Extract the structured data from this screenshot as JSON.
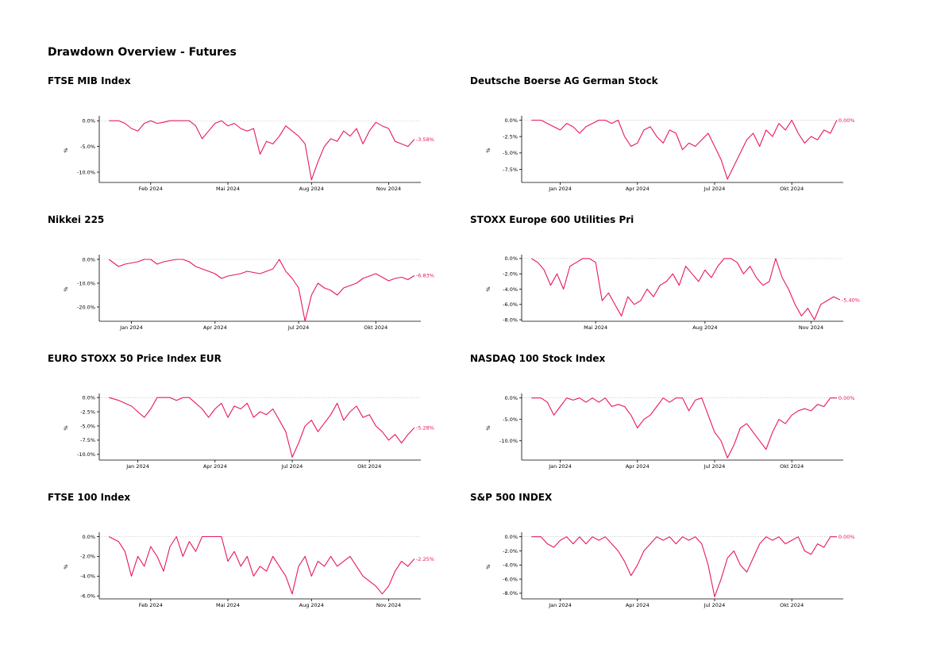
{
  "page_title": "Drawdown Overview - Futures",
  "colors": {
    "line": "#e8185a",
    "zero_line": "#bbbbbb",
    "axis": "#000000"
  },
  "chart_data": [
    {
      "type": "line",
      "title": "FTSE MIB Index",
      "ylabel": "%",
      "yticks": [
        0,
        -5,
        -10
      ],
      "ytick_labels": [
        "0.0%",
        "-5.0%",
        "-10.0%"
      ],
      "ylim": [
        -12,
        0.5
      ],
      "xlim": [
        0,
        100
      ],
      "xticks": [
        16,
        40,
        66,
        90
      ],
      "xtick_labels": [
        "Feb 2024",
        "Mai 2024",
        "Aug 2024",
        "Nov 2024"
      ],
      "end_label": "-3.58%",
      "x": [
        3,
        6,
        8,
        10,
        12,
        14,
        16,
        18,
        20,
        22,
        24,
        26,
        28,
        30,
        32,
        34,
        36,
        38,
        40,
        42,
        44,
        46,
        48,
        50,
        52,
        54,
        56,
        58,
        60,
        62,
        64,
        66,
        68,
        70,
        72,
        74,
        76,
        78,
        80,
        82,
        84,
        86,
        88,
        90,
        92,
        94,
        96,
        98
      ],
      "y": [
        0,
        0,
        -0.5,
        -1.5,
        -2,
        -0.5,
        0,
        -0.5,
        -0.3,
        0,
        0,
        0,
        0,
        -1,
        -3.5,
        -2,
        -0.5,
        0,
        -1,
        -0.5,
        -1.5,
        -2,
        -1.5,
        -6.5,
        -4,
        -4.5,
        -3,
        -1,
        -2,
        -3,
        -4.5,
        -11.5,
        -8,
        -5,
        -3.5,
        -4,
        -2,
        -3,
        -1.5,
        -4.5,
        -2,
        -0.3,
        -1,
        -1.5,
        -4,
        -4.5,
        -5,
        -3.6
      ]
    },
    {
      "type": "line",
      "title": "Deutsche Boerse AG German Stock",
      "ylabel": "%",
      "yticks": [
        0,
        -2.5,
        -5,
        -7.5
      ],
      "ytick_labels": [
        "0.0%",
        "-2.5%",
        "-5.0%",
        "-7.5%"
      ],
      "ylim": [
        -9.5,
        0.3
      ],
      "xlim": [
        0,
        100
      ],
      "xticks": [
        12,
        36,
        60,
        84
      ],
      "xtick_labels": [
        "Jan 2024",
        "Apr 2024",
        "Jul 2024",
        "Okt 2024"
      ],
      "end_label": "0.00%",
      "x": [
        3,
        6,
        8,
        10,
        12,
        14,
        16,
        18,
        20,
        22,
        24,
        26,
        28,
        30,
        32,
        34,
        36,
        38,
        40,
        42,
        44,
        46,
        48,
        50,
        52,
        54,
        56,
        58,
        60,
        62,
        64,
        66,
        68,
        70,
        72,
        74,
        76,
        78,
        80,
        82,
        84,
        86,
        88,
        90,
        92,
        94,
        96,
        98
      ],
      "y": [
        0,
        0,
        -0.5,
        -1,
        -1.5,
        -0.5,
        -1,
        -2,
        -1,
        -0.5,
        0,
        0,
        -0.5,
        0,
        -2.5,
        -4,
        -3.5,
        -1.5,
        -1,
        -2.5,
        -3.5,
        -1.5,
        -2,
        -4.5,
        -3.5,
        -4,
        -3,
        -2,
        -4,
        -6,
        -9,
        -7,
        -5,
        -3,
        -2,
        -4,
        -1.5,
        -2.5,
        -0.5,
        -1.5,
        0,
        -2,
        -3.5,
        -2.5,
        -3,
        -1.5,
        -2,
        0
      ]
    },
    {
      "type": "line",
      "title": "Nikkei 225",
      "ylabel": "%",
      "yticks": [
        0,
        -10,
        -20
      ],
      "ytick_labels": [
        "0.0%",
        "-10.0%",
        "-20.0%"
      ],
      "ylim": [
        -26,
        1
      ],
      "xlim": [
        0,
        100
      ],
      "xticks": [
        10,
        36,
        62,
        86
      ],
      "xtick_labels": [
        "Jan 2024",
        "Apr 2024",
        "Jul 2024",
        "Okt 2024"
      ],
      "end_label": "-6.83%",
      "x": [
        3,
        6,
        8,
        10,
        12,
        14,
        16,
        18,
        20,
        22,
        24,
        26,
        28,
        30,
        32,
        34,
        36,
        38,
        40,
        42,
        44,
        46,
        48,
        50,
        52,
        54,
        56,
        58,
        60,
        62,
        64,
        66,
        68,
        70,
        72,
        74,
        76,
        78,
        80,
        82,
        84,
        86,
        88,
        90,
        92,
        94,
        96,
        98
      ],
      "y": [
        0,
        -3,
        -2,
        -1.5,
        -1,
        0,
        0,
        -2,
        -1,
        -0.5,
        0,
        0,
        -1,
        -3,
        -4,
        -5,
        -6,
        -8,
        -7,
        -6.5,
        -6,
        -5,
        -5.5,
        -6,
        -5,
        -4,
        0,
        -5,
        -8,
        -12,
        -26,
        -15,
        -10,
        -12,
        -13,
        -15,
        -12,
        -11,
        -10,
        -8,
        -7,
        -6,
        -7.5,
        -9,
        -8,
        -7.5,
        -8.5,
        -6.8
      ]
    },
    {
      "type": "line",
      "title": "STOXX Europe 600 Utilities Pri",
      "ylabel": "%",
      "yticks": [
        0,
        -2,
        -4,
        -6,
        -8
      ],
      "ytick_labels": [
        "0.0%",
        "-2.0%",
        "-4.0%",
        "-6.0%",
        "-8.0%"
      ],
      "ylim": [
        -8.2,
        0.2
      ],
      "xlim": [
        0,
        100
      ],
      "xticks": [
        23,
        57,
        90
      ],
      "xtick_labels": [
        "Mai 2024",
        "Aug 2024",
        "Nov 2024"
      ],
      "end_label": "-5.40%",
      "x": [
        3,
        5,
        7,
        9,
        11,
        13,
        15,
        17,
        19,
        21,
        23,
        25,
        27,
        29,
        31,
        33,
        35,
        37,
        39,
        41,
        43,
        45,
        47,
        49,
        51,
        53,
        55,
        57,
        59,
        61,
        63,
        65,
        67,
        69,
        71,
        73,
        75,
        77,
        79,
        81,
        83,
        85,
        87,
        89,
        91,
        93,
        95,
        97,
        99
      ],
      "y": [
        0,
        -0.5,
        -1.5,
        -3.5,
        -2,
        -4,
        -1,
        -0.5,
        0,
        0,
        -0.5,
        -5.5,
        -4.5,
        -6,
        -7.5,
        -5,
        -6,
        -5.5,
        -4,
        -5,
        -3.5,
        -3,
        -2,
        -3.5,
        -1,
        -2,
        -3,
        -1.5,
        -2.5,
        -1,
        0,
        0,
        -0.5,
        -2,
        -1,
        -2.5,
        -3.5,
        -3,
        0,
        -2.5,
        -4,
        -6,
        -7.5,
        -6.5,
        -8,
        -6,
        -5.5,
        -5,
        -5.4
      ]
    },
    {
      "type": "line",
      "title": "EURO STOXX 50 Price Index EUR",
      "ylabel": "%",
      "yticks": [
        0,
        -2.5,
        -5,
        -7.5,
        -10
      ],
      "ytick_labels": [
        "0.0%",
        "-2.5%",
        "-5.0%",
        "-7.5%",
        "-10.0%"
      ],
      "ylim": [
        -11,
        0.3
      ],
      "xlim": [
        0,
        100
      ],
      "xticks": [
        12,
        36,
        60,
        84
      ],
      "xtick_labels": [
        "Jan 2024",
        "Apr 2024",
        "Jul 2024",
        "Okt 2024"
      ],
      "end_label": "-5.28%",
      "x": [
        3,
        6,
        8,
        10,
        12,
        14,
        16,
        18,
        20,
        22,
        24,
        26,
        28,
        30,
        32,
        34,
        36,
        38,
        40,
        42,
        44,
        46,
        48,
        50,
        52,
        54,
        56,
        58,
        60,
        62,
        64,
        66,
        68,
        70,
        72,
        74,
        76,
        78,
        80,
        82,
        84,
        86,
        88,
        90,
        92,
        94,
        96,
        98
      ],
      "y": [
        0,
        -0.5,
        -1,
        -1.5,
        -2.5,
        -3.5,
        -2,
        0,
        0,
        0,
        -0.5,
        0,
        0,
        -1,
        -2,
        -3.5,
        -2,
        -1,
        -3.5,
        -1.5,
        -2,
        -1,
        -3.5,
        -2.5,
        -3,
        -2,
        -4,
        -6,
        -10.5,
        -8,
        -5,
        -4,
        -6,
        -4.5,
        -3,
        -1,
        -4,
        -2.5,
        -1.5,
        -3.5,
        -3,
        -5,
        -6,
        -7.5,
        -6.5,
        -8,
        -6.5,
        -5.3
      ]
    },
    {
      "type": "line",
      "title": "NASDAQ 100 Stock Index",
      "ylabel": "%",
      "yticks": [
        0,
        -5,
        -10
      ],
      "ytick_labels": [
        "0.0%",
        "-5.0%",
        "-10.0%"
      ],
      "ylim": [
        -14.5,
        0.5
      ],
      "xlim": [
        0,
        100
      ],
      "xticks": [
        12,
        36,
        60,
        84
      ],
      "xtick_labels": [
        "Jan 2024",
        "Apr 2024",
        "Jul 2024",
        "Okt 2024"
      ],
      "end_label": "0.00%",
      "x": [
        3,
        6,
        8,
        10,
        12,
        14,
        16,
        18,
        20,
        22,
        24,
        26,
        28,
        30,
        32,
        34,
        36,
        38,
        40,
        42,
        44,
        46,
        48,
        50,
        52,
        54,
        56,
        58,
        60,
        62,
        64,
        66,
        68,
        70,
        72,
        74,
        76,
        78,
        80,
        82,
        84,
        86,
        88,
        90,
        92,
        94,
        96,
        98
      ],
      "y": [
        0,
        0,
        -1,
        -4,
        -2,
        0,
        -0.5,
        0,
        -1,
        0,
        -1,
        0,
        -2,
        -1.5,
        -2,
        -4,
        -7,
        -5,
        -4,
        -2,
        0,
        -1,
        0,
        0,
        -3,
        -0.5,
        0,
        -4,
        -8,
        -10,
        -14,
        -11,
        -7,
        -6,
        -8,
        -10,
        -12,
        -8,
        -5,
        -6,
        -4,
        -3,
        -2.5,
        -3,
        -1.5,
        -2,
        0,
        0
      ]
    },
    {
      "type": "line",
      "title": "FTSE 100 Index",
      "ylabel": "%",
      "yticks": [
        0,
        -2,
        -4,
        -6
      ],
      "ytick_labels": [
        "0.0%",
        "-2.0%",
        "-4.0%",
        "-6.0%"
      ],
      "ylim": [
        -6.3,
        0.2
      ],
      "xlim": [
        0,
        100
      ],
      "xticks": [
        16,
        40,
        66,
        90
      ],
      "xtick_labels": [
        "Feb 2024",
        "Mai 2024",
        "Aug 2024",
        "Nov 2024"
      ],
      "end_label": "-2.25%",
      "x": [
        3,
        6,
        8,
        10,
        12,
        14,
        16,
        18,
        20,
        22,
        24,
        26,
        28,
        30,
        32,
        34,
        36,
        38,
        40,
        42,
        44,
        46,
        48,
        50,
        52,
        54,
        56,
        58,
        60,
        62,
        64,
        66,
        68,
        70,
        72,
        74,
        76,
        78,
        80,
        82,
        84,
        86,
        88,
        90,
        92,
        94,
        96,
        98
      ],
      "y": [
        0,
        -0.5,
        -1.5,
        -4,
        -2,
        -3,
        -1,
        -2,
        -3.5,
        -1,
        0,
        -2,
        -0.5,
        -1.5,
        0,
        0,
        0,
        0,
        -2.5,
        -1.5,
        -3,
        -2,
        -4,
        -3,
        -3.5,
        -2,
        -3,
        -4,
        -5.8,
        -3,
        -2,
        -4,
        -2.5,
        -3,
        -2,
        -3,
        -2.5,
        -2,
        -3,
        -4,
        -4.5,
        -5,
        -5.8,
        -5,
        -3.5,
        -2.5,
        -3,
        -2.25
      ]
    },
    {
      "type": "line",
      "title": "S&P 500 INDEX",
      "ylabel": "%",
      "yticks": [
        0,
        -2,
        -4,
        -6,
        -8
      ],
      "ytick_labels": [
        "0.0%",
        "-2.0%",
        "-4.0%",
        "-6.0%",
        "-8.0%"
      ],
      "ylim": [
        -8.8,
        0.3
      ],
      "xlim": [
        0,
        100
      ],
      "xticks": [
        12,
        36,
        60,
        84
      ],
      "xtick_labels": [
        "Jan 2024",
        "Apr 2024",
        "Jul 2024",
        "Okt 2024"
      ],
      "end_label": "0.00%",
      "x": [
        3,
        6,
        8,
        10,
        12,
        14,
        16,
        18,
        20,
        22,
        24,
        26,
        28,
        30,
        32,
        34,
        36,
        38,
        40,
        42,
        44,
        46,
        48,
        50,
        52,
        54,
        56,
        58,
        60,
        62,
        64,
        66,
        68,
        70,
        72,
        74,
        76,
        78,
        80,
        82,
        84,
        86,
        88,
        90,
        92,
        94,
        96,
        98
      ],
      "y": [
        0,
        0,
        -1,
        -1.5,
        -0.5,
        0,
        -1,
        0,
        -1,
        0,
        -0.5,
        0,
        -1,
        -2,
        -3.5,
        -5.5,
        -4,
        -2,
        -1,
        0,
        -0.5,
        0,
        -1,
        0,
        -0.5,
        0,
        -1,
        -4,
        -8.5,
        -6,
        -3,
        -2,
        -4,
        -5,
        -3,
        -1,
        0,
        -0.5,
        0,
        -1,
        -0.5,
        0,
        -2,
        -2.5,
        -1,
        -1.5,
        0,
        0
      ]
    }
  ]
}
